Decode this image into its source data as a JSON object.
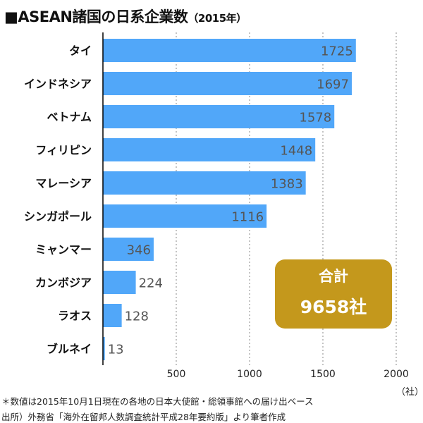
{
  "title": "■ASEAN諸国の日系企業数",
  "subtitle": "（2015年）",
  "chart_data": {
    "type": "bar",
    "orientation": "horizontal",
    "categories": [
      "タイ",
      "インドネシア",
      "ベトナム",
      "フィリピン",
      "マレーシア",
      "シンガポール",
      "ミャンマー",
      "カンボジア",
      "ラオス",
      "ブルネイ"
    ],
    "values": [
      1725,
      1697,
      1578,
      1448,
      1383,
      1116,
      346,
      224,
      128,
      13
    ],
    "xlim": [
      0,
      2000
    ],
    "xticks": [
      500,
      1000,
      1500,
      2000
    ],
    "xunit": "（社）",
    "grid": "vertical dashed",
    "bar_color": "#51a7f9"
  },
  "total": {
    "label": "合計",
    "value": "9658社",
    "color": "#c4981c"
  },
  "notes": [
    "＊数値は2015年10月1日現在の各地の日本大使館・総領事館への届け出ベース",
    "出所）外務省「海外在留邦人数調査統計平成28年要約版」より筆者作成"
  ]
}
